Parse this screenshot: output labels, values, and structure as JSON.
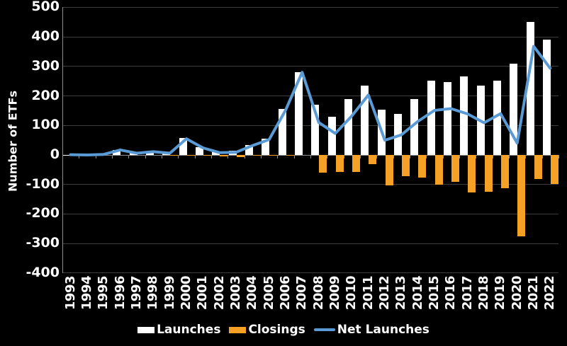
{
  "chart_data": {
    "type": "bar",
    "subtype": "clustered-bar-with-line-combo",
    "title": "",
    "xlabel": "",
    "ylabel": "Number of ETFs",
    "ylim": [
      -400,
      500
    ],
    "ytick_step": 100,
    "ytick_labels": [
      "500",
      "400",
      "300",
      "200",
      "100",
      "0",
      "-100",
      "-200",
      "-300",
      "-400"
    ],
    "grid": true,
    "legend_position": "bottom",
    "categories": [
      "1993",
      "1994",
      "1995",
      "1996",
      "1997",
      "1998",
      "1999",
      "2000",
      "2001",
      "2002",
      "2003",
      "2004",
      "2005",
      "2006",
      "2007",
      "2008",
      "2009",
      "2010",
      "2011",
      "2012",
      "2013",
      "2014",
      "2015",
      "2016",
      "2017",
      "2018",
      "2019",
      "2020",
      "2021",
      "2022"
    ],
    "series": [
      {
        "name": "Launches",
        "type": "bar",
        "color": "#ffffff",
        "values": [
          1,
          0,
          2,
          17,
          6,
          11,
          9,
          57,
          26,
          12,
          15,
          34,
          54,
          155,
          280,
          170,
          130,
          190,
          235,
          154,
          140,
          190,
          251,
          248,
          267,
          234,
          252,
          310,
          450,
          392
        ]
      },
      {
        "name": "Closings",
        "type": "bar",
        "color": "#f5a126",
        "values": [
          0,
          0,
          0,
          0,
          0,
          0,
          -3,
          -2,
          -2,
          -4,
          -6,
          -2,
          -2,
          -3,
          0,
          -60,
          -57,
          -58,
          -32,
          -104,
          -72,
          -76,
          -100,
          -91,
          -128,
          -125,
          -112,
          -275,
          -82,
          -98
        ]
      },
      {
        "name": "Net Launches",
        "type": "line",
        "color": "#5b9bd5",
        "values": [
          1,
          0,
          2,
          17,
          6,
          11,
          6,
          55,
          24,
          8,
          9,
          32,
          52,
          152,
          280,
          110,
          73,
          132,
          203,
          50,
          68,
          114,
          151,
          157,
          139,
          109,
          140,
          40,
          368,
          294
        ]
      }
    ],
    "colors": {
      "background": "#000000",
      "text": "#ffffff",
      "gridline": "#3d3d3d",
      "axis": "#8f8f8f",
      "launches": "#ffffff",
      "closings": "#f5a126",
      "net_line": "#5b9bd5"
    }
  }
}
